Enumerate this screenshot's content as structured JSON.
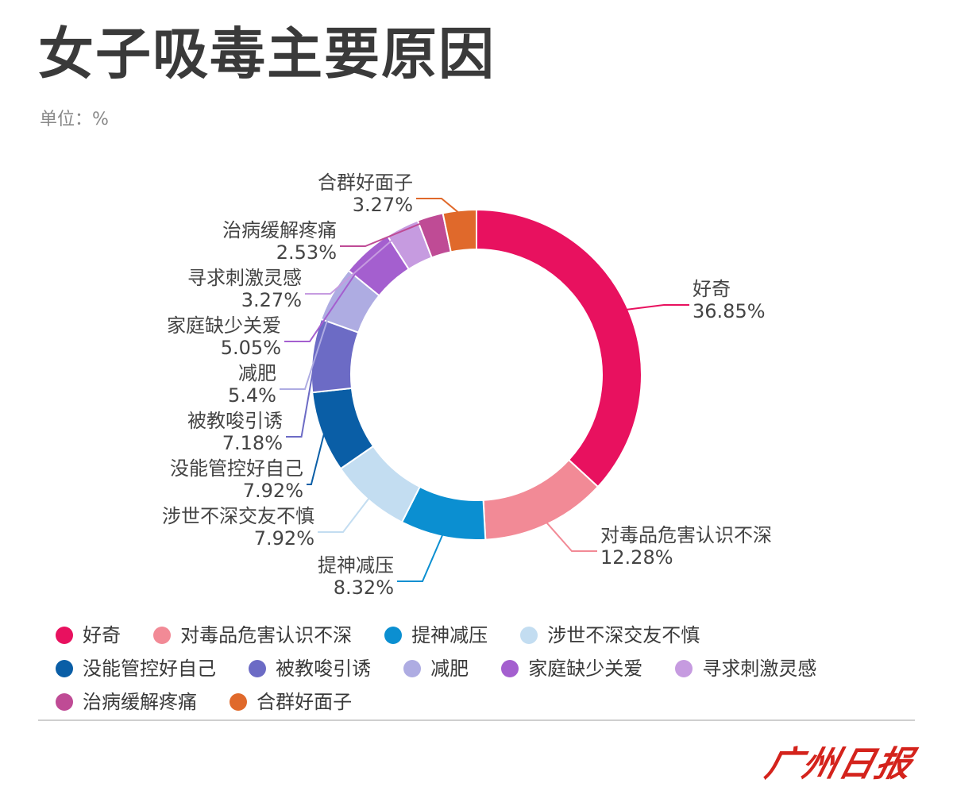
{
  "title": "女子吸毒主要原因",
  "unit": "单位：%",
  "brand": "广州日报",
  "chart_data": {
    "type": "pie",
    "donut": true,
    "slices": [
      {
        "label": "好奇",
        "value": 36.85,
        "value_label": "36.85%",
        "color": "#e8115f"
      },
      {
        "label": "对毒品危害认识不深",
        "value": 12.28,
        "value_label": "12.28%",
        "color": "#f28a96"
      },
      {
        "label": "提神减压",
        "value": 8.32,
        "value_label": "8.32%",
        "color": "#0b8fd1"
      },
      {
        "label": "涉世不深交友不慎",
        "value": 7.92,
        "value_label": "7.92%",
        "color": "#c3ddf1"
      },
      {
        "label": "没能管控好自己",
        "value": 7.92,
        "value_label": "7.92%",
        "color": "#0a5ea6"
      },
      {
        "label": "被教唆引诱",
        "value": 7.18,
        "value_label": "7.18%",
        "color": "#6c6bc5"
      },
      {
        "label": "减肥",
        "value": 5.4,
        "value_label": "5.4%",
        "color": "#aeace2"
      },
      {
        "label": "家庭缺少关爱",
        "value": 5.05,
        "value_label": "5.05%",
        "color": "#a45fcf"
      },
      {
        "label": "寻求刺激灵感",
        "value": 3.27,
        "value_label": "3.27%",
        "color": "#c69be0"
      },
      {
        "label": "治病缓解疼痛",
        "value": 2.53,
        "value_label": "2.53%",
        "color": "#bf4b95"
      },
      {
        "label": "合群好面子",
        "value": 3.27,
        "value_label": "3.27%",
        "color": "#e0692b"
      }
    ],
    "legend_position": "bottom"
  }
}
